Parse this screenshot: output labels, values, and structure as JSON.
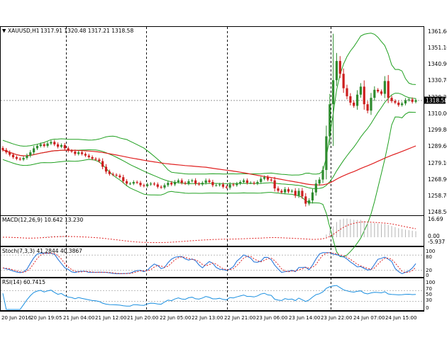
{
  "main_chart": {
    "symbol_label": "XAUUSD,H1",
    "ohlc": "1317.91 1320.48 1317.21 1318.58",
    "price_labels": [
      "1361.60",
      "1351.10",
      "1340.90",
      "1330.70",
      "1320.30",
      "1310.00",
      "1299.80",
      "1289.60",
      "1279.10",
      "1268.90",
      "1258.70",
      "1248.50"
    ],
    "current_price": "1318.58"
  },
  "macd": {
    "label": "MACD(12,26,9) 10.642 13.230",
    "scale_labels": [
      "16.69",
      "0.00",
      "-5.937"
    ]
  },
  "stoch": {
    "label": "Stoch(7,3,3) 41.2844 40.3867",
    "scale_labels": [
      "100",
      "80",
      "20",
      "0"
    ]
  },
  "rsi": {
    "label": "RSI(14) 60.7415",
    "scale_labels": [
      "100",
      "70",
      "50",
      "30",
      "0"
    ]
  },
  "time_labels": [
    "20 Jun 2016",
    "20 Jun 19:05",
    "21 Jun 04:00",
    "21 Jun 12:00",
    "21 Jun 20:00",
    "22 Jun 05:00",
    "22 Jun 13:00",
    "22 Jun 21:00",
    "23 Jun 06:00",
    "23 Jun 14:00",
    "23 Jun 22:00",
    "24 Jun 07:00",
    "24 Jun 15:00"
  ],
  "colors": {
    "bull": "#2e8b2e",
    "bear": "#cc1e1e",
    "bands": "#20a020",
    "ma": "#e02020",
    "macd_signal": "#e02020",
    "macd_hist": "#b4b4b4",
    "stoch_main": "#1a6fd8",
    "stoch_signal": "#e02020",
    "rsi": "#1a8fe0",
    "price_box": "#000000",
    "grid": "#000000"
  },
  "chart_data": {
    "type": "candlestick",
    "symbol": "XAUUSD",
    "timeframe": "H1",
    "ylim": [
      1245,
      1365
    ],
    "close": [
      1287.5,
      1286.0,
      1284.5,
      1283.0,
      1282.0,
      1281.5,
      1282.5,
      1284.0,
      1286.0,
      1288.5,
      1290.0,
      1291.0,
      1290.0,
      1291.5,
      1292.5,
      1291.0,
      1289.5,
      1290.5,
      1288.5,
      1287.0,
      1286.5,
      1285.0,
      1286.0,
      1285.0,
      1284.0,
      1283.0,
      1282.0,
      1281.5,
      1280.5,
      1277.0,
      1274.0,
      1272.5,
      1272.0,
      1271.5,
      1270.5,
      1268.0,
      1266.5,
      1266.5,
      1267.5,
      1267.0,
      1265.5,
      1265.0,
      1266.0,
      1266.5,
      1266.0,
      1264.5,
      1264.0,
      1265.5,
      1267.0,
      1266.0,
      1267.5,
      1268.5,
      1267.0,
      1266.5,
      1268.0,
      1268.5,
      1266.5,
      1266.0,
      1267.0,
      1268.5,
      1267.5,
      1265.5,
      1265.5,
      1266.0,
      1264.5,
      1264.0,
      1266.0,
      1265.5,
      1266.5,
      1267.5,
      1268.5,
      1267.0,
      1267.0,
      1266.5,
      1267.5,
      1269.5,
      1270.5,
      1269.0,
      1268.5,
      1263.5,
      1262.0,
      1261.0,
      1263.0,
      1261.5,
      1262.0,
      1259.0,
      1262.0,
      1258.5,
      1254.0,
      1256.0,
      1261.0,
      1266.5,
      1269.0,
      1275.0,
      1296.0,
      1316.0,
      1331.0,
      1343.0,
      1335.0,
      1326.0,
      1321.0,
      1317.0,
      1315.0,
      1322.0,
      1327.0,
      1316.0,
      1312.0,
      1320.0,
      1325.0,
      1324.0,
      1322.5,
      1330.5,
      1320.0,
      1318.0,
      1317.0,
      1315.5,
      1316.5,
      1318.5,
      1319.0,
      1317.5,
      1318.6
    ]
  }
}
